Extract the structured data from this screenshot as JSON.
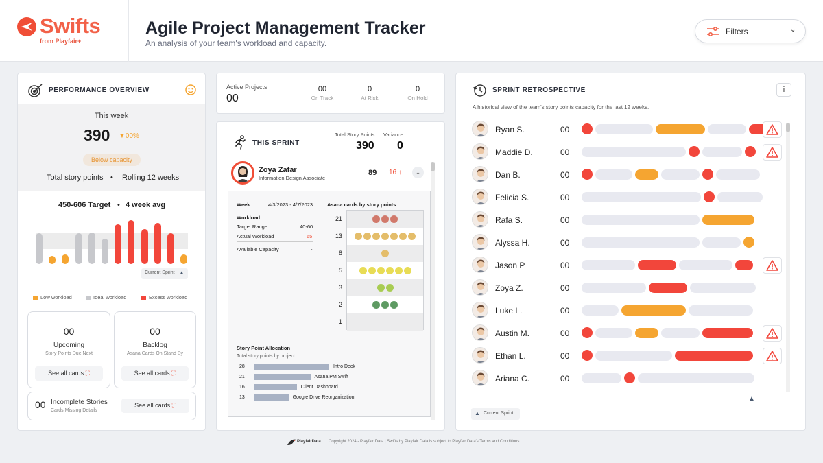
{
  "header": {
    "logo": "Swifts",
    "logo_sub": "from Playfair+",
    "title": "Agile Project Management Tracker",
    "subtitle": "An analysis of your team's workload and capacity.",
    "filters_label": "Filters"
  },
  "colors": {
    "accent": "#f04e37",
    "low": "#f5a531",
    "ideal": "#c7c8cc",
    "excess": "#f2463b",
    "track": "#e8e9f0"
  },
  "performance": {
    "title": "PERFORMANCE OVERVIEW",
    "this_week_label": "This week",
    "value": "390",
    "delta": "▼00%",
    "capacity_badge": "Below capacity",
    "total_label": "Total story points",
    "rolling_label": "Rolling 12 weeks",
    "target_label": "450-606 Target",
    "avg_label": "4 week avg",
    "current_sprint_label": "Current Sprint",
    "legend": {
      "low": "Low workload",
      "ideal": "Ideal workload",
      "excess": "Excess workload"
    },
    "bars": [
      {
        "status": "ideal",
        "value": 0.7
      },
      {
        "status": "low",
        "value": 0.18
      },
      {
        "status": "low",
        "value": 0.22
      },
      {
        "status": "ideal",
        "value": 0.7
      },
      {
        "status": "ideal",
        "value": 0.72
      },
      {
        "status": "ideal",
        "value": 0.58
      },
      {
        "status": "excess",
        "value": 0.9
      },
      {
        "status": "excess",
        "value": 1.0
      },
      {
        "status": "excess",
        "value": 0.8
      },
      {
        "status": "excess",
        "value": 0.94
      },
      {
        "status": "excess",
        "value": 0.7
      },
      {
        "status": "low",
        "value": 0.22
      }
    ],
    "upcoming": {
      "value": "00",
      "label": "Upcoming",
      "sub": "Story Points Due Next",
      "button": "See all cards"
    },
    "backlog": {
      "value": "00",
      "label": "Backlog",
      "sub": "Asana Cards On Stand By",
      "button": "See all cards"
    },
    "incomplete": {
      "value": "00",
      "label": "Incomplete Stories",
      "sub": "Cards Missing Details",
      "button": "See all cards"
    }
  },
  "projects": {
    "active_label": "Active Projects",
    "active_value": "00",
    "on_track_value": "00",
    "on_track_label": "On Track",
    "at_risk_value": "0",
    "at_risk_label": "At Risk",
    "on_hold_value": "0",
    "on_hold_label": "On Hold"
  },
  "sprint": {
    "title": "THIS SPRINT",
    "total_label": "Total Story Points",
    "total_value": "390",
    "variance_label": "Variance",
    "variance_value": "0",
    "person": {
      "name": "Zoya Zafar",
      "role": "Information Design Associate",
      "points": "89",
      "change": "16 ↑"
    },
    "week_label": "Week",
    "week_value": "4/3/2023 - 4/7/2023",
    "workload_label": "Workload",
    "target_range_label": "Target Range",
    "target_range_value": "40-60",
    "actual_label": "Actual Workload",
    "actual_value": "65",
    "available_label": "Available Capacity",
    "available_value": "-",
    "asana_title": "Asana cards by story points",
    "asana_rows": [
      {
        "points": "21",
        "count": 3,
        "color": "#d1796b"
      },
      {
        "points": "13",
        "count": 7,
        "color": "#e4bd6a"
      },
      {
        "points": "8",
        "count": 1,
        "color": "#e4bd6a"
      },
      {
        "points": "5",
        "count": 6,
        "color": "#e8dc55"
      },
      {
        "points": "3",
        "count": 2,
        "color": "#a8cc52"
      },
      {
        "points": "2",
        "count": 3,
        "color": "#5e9a62"
      },
      {
        "points": "1",
        "count": 0,
        "color": "#5e9a62"
      }
    ],
    "allocation_title": "Story Point Allocation",
    "allocation_sub": "Total story points by project.",
    "allocation": [
      {
        "value": "28",
        "project": "Intro Deck",
        "ratio": 1.0
      },
      {
        "value": "21",
        "project": "Asana PM Swift",
        "ratio": 0.75
      },
      {
        "value": "16",
        "project": "Client Dashboard",
        "ratio": 0.57
      },
      {
        "value": "13",
        "project": "Google Drive Reorganization",
        "ratio": 0.46
      }
    ]
  },
  "retro": {
    "title": "SPRINT RETROSPECTIVE",
    "info": "i",
    "subtitle": "A historical view of the team's story points capacity for the last 12 weeks.",
    "current_sprint_label": "Current Sprint",
    "members": [
      {
        "name": "Ryan S.",
        "value": "00",
        "warn": true
      },
      {
        "name": "Maddie D.",
        "value": "00",
        "warn": true
      },
      {
        "name": "Dan B.",
        "value": "00",
        "warn": false
      },
      {
        "name": "Felicia S.",
        "value": "00",
        "warn": false
      },
      {
        "name": "Rafa S.",
        "value": "00",
        "warn": false
      },
      {
        "name": "Alyssa H.",
        "value": "00",
        "warn": false
      },
      {
        "name": "Jason P",
        "value": "00",
        "warn": true
      },
      {
        "name": "Zoya Z.",
        "value": "00",
        "warn": false
      },
      {
        "name": "Luke L.",
        "value": "00",
        "warn": false
      },
      {
        "name": "Austin M.",
        "value": "00",
        "warn": true
      },
      {
        "name": "Ethan L.",
        "value": "00",
        "warn": true
      },
      {
        "name": "Ariana C.",
        "value": "00",
        "warn": false
      }
    ]
  },
  "footer": {
    "brand": "PlayfairData",
    "text": "Copyright 2024 - Playfair Data | Swifts by Playfair Data is subject to Playfair Data's Terms and Conditions"
  }
}
